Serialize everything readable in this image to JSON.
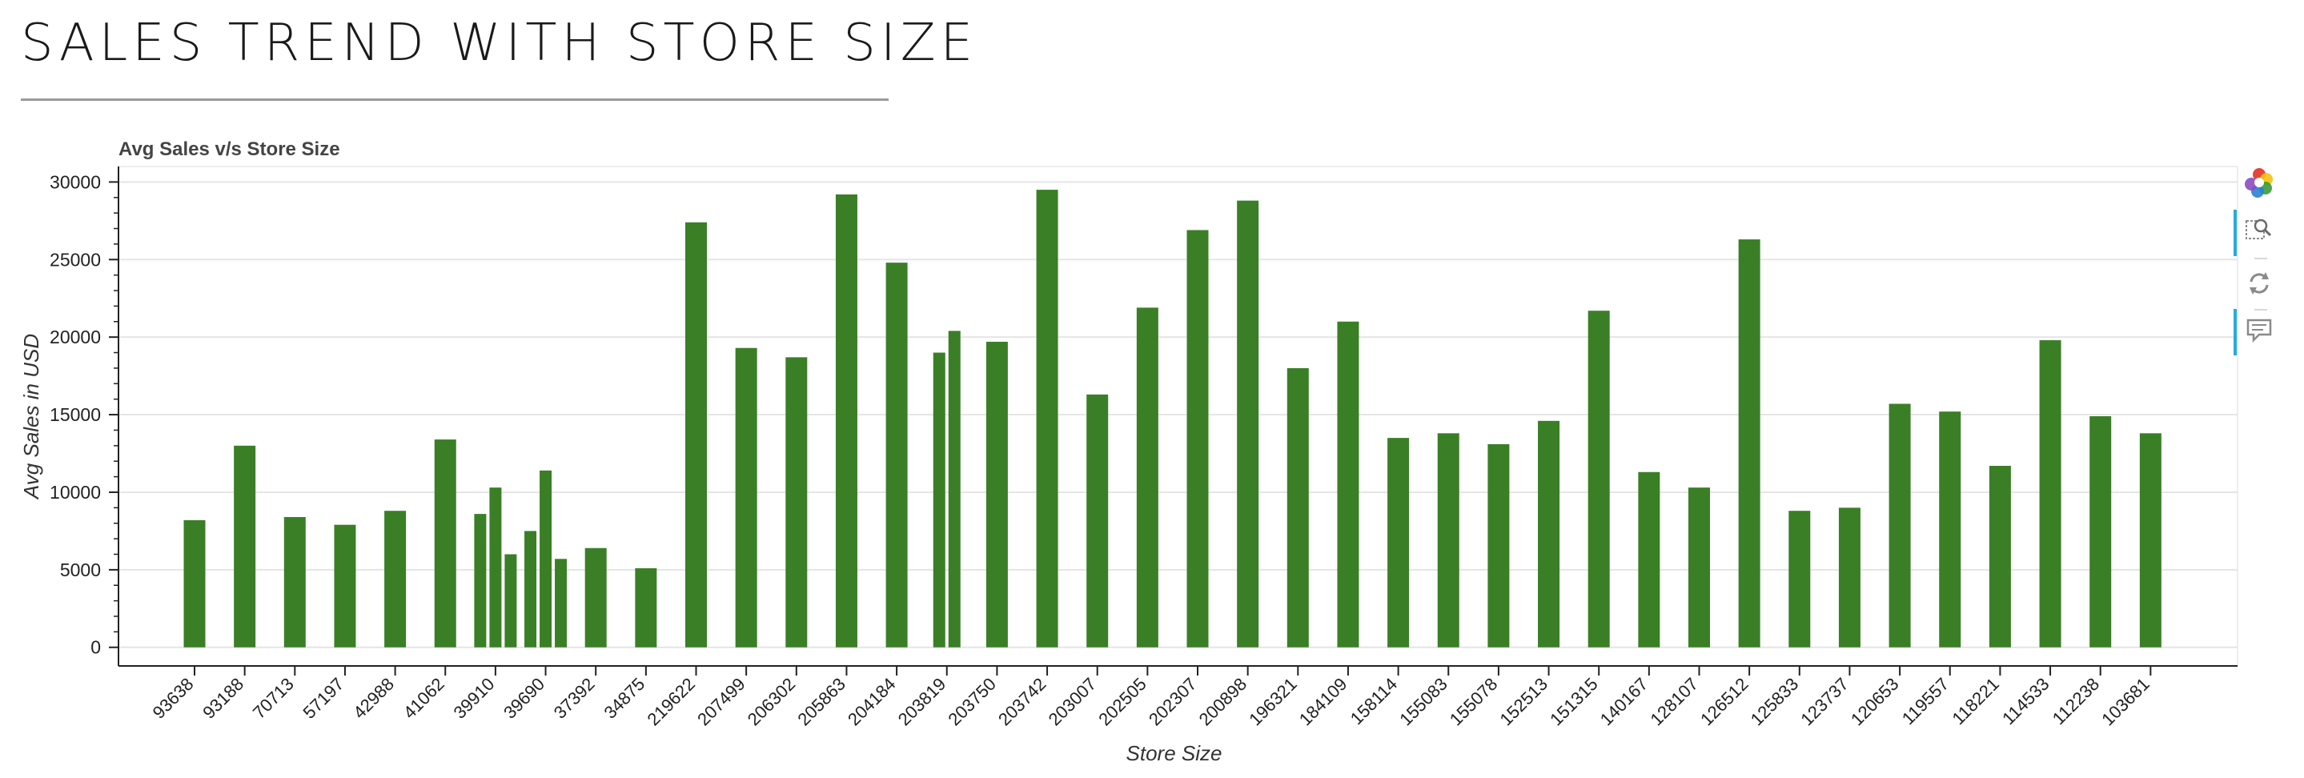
{
  "page": {
    "title": "SALES TREND WITH STORE SIZE"
  },
  "colors": {
    "bar": "#3a7f26",
    "grid": "#e5e5e5",
    "axis": "#222222",
    "toolbar_active": "#26aae1"
  },
  "toolbar": {
    "icons": [
      "bokeh-logo-icon",
      "box-zoom-icon",
      "reset-icon",
      "hover-icon"
    ]
  },
  "chart_data": {
    "type": "bar",
    "title": "Avg Sales v/s Store Size",
    "xlabel": "Store Size",
    "ylabel": "Avg Sales in USD",
    "ylim": [
      -1200,
      31000
    ],
    "yticks": [
      0,
      5000,
      10000,
      15000,
      20000,
      25000,
      30000
    ],
    "grid": true,
    "categories": [
      "93638",
      "93188",
      "70713",
      "57197",
      "42988",
      "41062",
      "39910",
      "39910",
      "39910",
      "39690",
      "39690",
      "39690",
      "37392",
      "34875",
      "219622",
      "207499",
      "206302",
      "205863",
      "204184",
      "203819",
      "203819",
      "203750",
      "203742",
      "203007",
      "202505",
      "202307",
      "200898",
      "196321",
      "184109",
      "158114",
      "155083",
      "155078",
      "152513",
      "151315",
      "140167",
      "128107",
      "126512",
      "125833",
      "123737",
      "120653",
      "119557",
      "118221",
      "114533",
      "112238",
      "103681"
    ],
    "tick_labels": [
      "93638",
      "93188",
      "70713",
      "57197",
      "42988",
      "41062",
      "39910",
      "39690",
      "37392",
      "34875",
      "219622",
      "207499",
      "206302",
      "205863",
      "204184",
      "203819",
      "203750",
      "203742",
      "203007",
      "202505",
      "202307",
      "200898",
      "196321",
      "184109",
      "158114",
      "155083",
      "155078",
      "152513",
      "151315",
      "140167",
      "128107",
      "126512",
      "125833",
      "123737",
      "120653",
      "119557",
      "118221",
      "114533",
      "112238",
      "103681"
    ],
    "values": [
      8200,
      13000,
      8400,
      7900,
      8800,
      13400,
      8600,
      10300,
      6000,
      7500,
      11400,
      5700,
      6400,
      5100,
      27400,
      19300,
      18700,
      29200,
      24800,
      19000,
      20400,
      19700,
      29500,
      16300,
      21900,
      26900,
      28800,
      18000,
      21000,
      13500,
      13800,
      13100,
      14600,
      21700,
      11300,
      10300,
      26300,
      8800,
      9000,
      15700,
      15200,
      11700,
      19800,
      14900,
      13800
    ]
  }
}
